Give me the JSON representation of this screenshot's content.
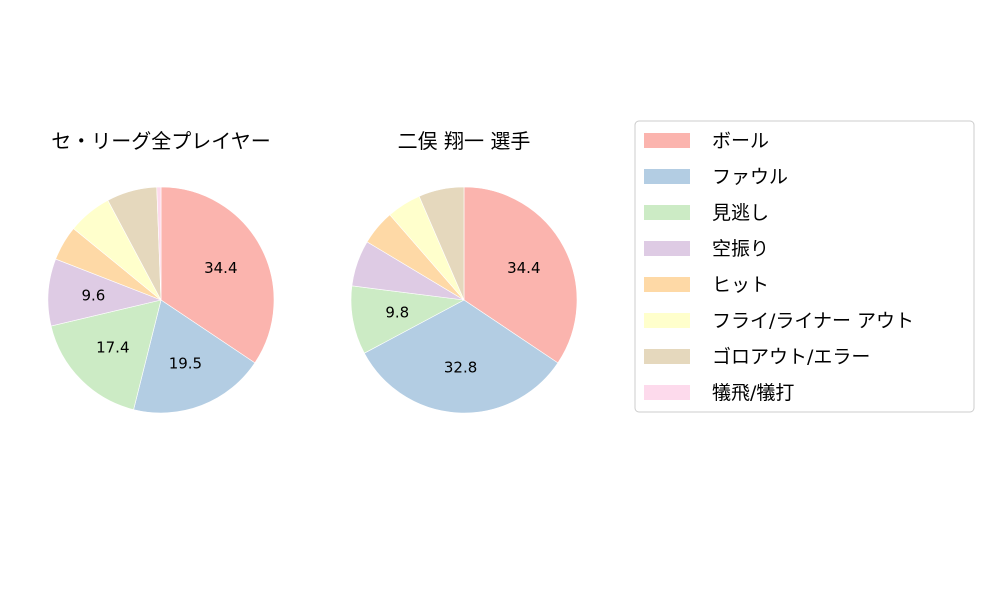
{
  "chart_data": {
    "type": "pie",
    "start_angle": 90,
    "direction": "clockwise",
    "categories": [
      "ボール",
      "ファウル",
      "見逃し",
      "空振り",
      "ヒット",
      "フライ/ライナー アウト",
      "ゴロアウト/エラー",
      "犠飛/犠打"
    ],
    "colors": [
      "#fbb4ae",
      "#b3cde3",
      "#ccebc5",
      "#decbe4",
      "#fed9a6",
      "#ffffcc",
      "#e5d8bd",
      "#fddaec"
    ],
    "legend_position": "right",
    "charts": [
      {
        "title": "セ・リーグ全プレイヤー",
        "values": [
          34.4,
          19.5,
          17.4,
          9.6,
          5.0,
          6.3,
          7.2,
          0.6
        ],
        "labels": [
          "34.4",
          "19.5",
          "17.4",
          "9.6",
          "",
          "",
          "",
          ""
        ]
      },
      {
        "title": "二俣 翔一  選手",
        "values": [
          34.4,
          32.8,
          9.8,
          6.6,
          5.0,
          4.9,
          6.5,
          0.0
        ],
        "labels": [
          "34.4",
          "32.8",
          "9.8",
          "",
          "",
          "",
          "",
          ""
        ]
      }
    ]
  }
}
